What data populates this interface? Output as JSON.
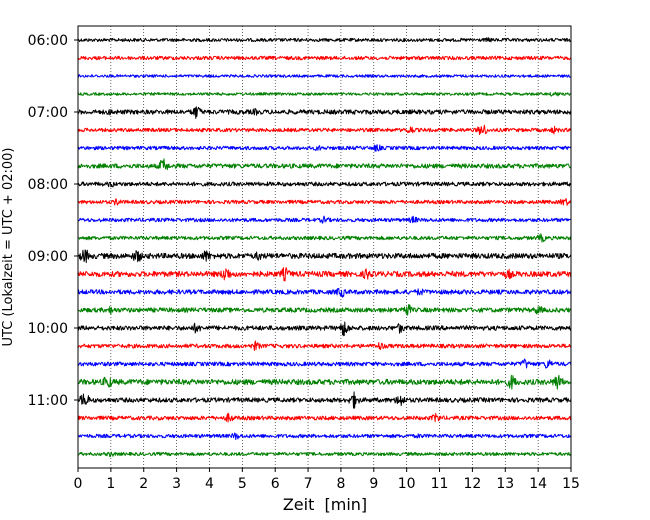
{
  "chart_data": {
    "type": "line",
    "title": "",
    "xlabel": "Zeit  [min]",
    "ylabel": "UTC (Lokalzeit = UTC + 02:00)",
    "xlim": [
      0,
      15
    ],
    "x_ticks": [
      "0",
      "1",
      "2",
      "3",
      "4",
      "5",
      "6",
      "7",
      "8",
      "9",
      "10",
      "11",
      "12",
      "13",
      "14",
      "15"
    ],
    "y_tick_labels": [
      "06:00",
      "07:00",
      "08:00",
      "09:00",
      "10:00",
      "11:00"
    ],
    "grid": "vertical-dotted",
    "row_interval_min": 15,
    "line_colors": [
      "#000000",
      "#ff0000",
      "#0000ff",
      "#008000"
    ],
    "traces": [
      {
        "start": "06:00",
        "color": "#000000",
        "amplitude": 0.18,
        "events": [
          {
            "t": 12.5,
            "amp": 0.3
          }
        ]
      },
      {
        "start": "06:15",
        "color": "#ff0000",
        "amplitude": 0.2,
        "events": []
      },
      {
        "start": "06:30",
        "color": "#0000ff",
        "amplitude": 0.15,
        "events": []
      },
      {
        "start": "06:45",
        "color": "#008000",
        "amplitude": 0.15,
        "events": [
          {
            "t": 14.5,
            "amp": 0.35
          }
        ]
      },
      {
        "start": "07:00",
        "color": "#000000",
        "amplitude": 0.25,
        "events": [
          {
            "t": 1.0,
            "amp": 0.4
          },
          {
            "t": 3.6,
            "amp": 0.8
          },
          {
            "t": 5.4,
            "amp": 0.4
          }
        ]
      },
      {
        "start": "07:15",
        "color": "#ff0000",
        "amplitude": 0.2,
        "events": [
          {
            "t": 10.1,
            "amp": 0.5
          },
          {
            "t": 12.3,
            "amp": 0.75
          },
          {
            "t": 14.5,
            "amp": 0.45
          }
        ]
      },
      {
        "start": "07:30",
        "color": "#0000ff",
        "amplitude": 0.2,
        "events": [
          {
            "t": 7.3,
            "amp": 0.35
          },
          {
            "t": 9.1,
            "amp": 0.45
          }
        ]
      },
      {
        "start": "07:45",
        "color": "#008000",
        "amplitude": 0.25,
        "events": [
          {
            "t": 2.6,
            "amp": 0.85
          },
          {
            "t": 10.7,
            "amp": 0.3
          }
        ]
      },
      {
        "start": "08:00",
        "color": "#000000",
        "amplitude": 0.22,
        "events": [
          {
            "t": 1.0,
            "amp": 0.4
          }
        ]
      },
      {
        "start": "08:15",
        "color": "#ff0000",
        "amplitude": 0.2,
        "events": [
          {
            "t": 1.2,
            "amp": 0.45
          },
          {
            "t": 14.8,
            "amp": 0.5
          }
        ]
      },
      {
        "start": "08:30",
        "color": "#0000ff",
        "amplitude": 0.2,
        "events": [
          {
            "t": 7.5,
            "amp": 0.45
          },
          {
            "t": 10.2,
            "amp": 0.45
          }
        ]
      },
      {
        "start": "08:45",
        "color": "#008000",
        "amplitude": 0.2,
        "events": [
          {
            "t": 14.1,
            "amp": 0.5
          }
        ]
      },
      {
        "start": "09:00",
        "color": "#000000",
        "amplitude": 0.3,
        "events": [
          {
            "t": 0.2,
            "amp": 0.85
          },
          {
            "t": 1.8,
            "amp": 0.8
          },
          {
            "t": 3.9,
            "amp": 0.7
          },
          {
            "t": 5.5,
            "amp": 0.55
          }
        ]
      },
      {
        "start": "09:15",
        "color": "#ff0000",
        "amplitude": 0.3,
        "events": [
          {
            "t": 4.5,
            "amp": 0.9
          },
          {
            "t": 6.3,
            "amp": 0.8
          },
          {
            "t": 8.8,
            "amp": 0.7
          },
          {
            "t": 13.1,
            "amp": 0.6
          }
        ]
      },
      {
        "start": "09:30",
        "color": "#0000ff",
        "amplitude": 0.25,
        "events": [
          {
            "t": 8.0,
            "amp": 0.65
          },
          {
            "t": 10.4,
            "amp": 0.45
          }
        ]
      },
      {
        "start": "09:45",
        "color": "#008000",
        "amplitude": 0.25,
        "events": [
          {
            "t": 1.0,
            "amp": 0.5
          },
          {
            "t": 10.0,
            "amp": 0.8
          },
          {
            "t": 14.0,
            "amp": 0.55
          }
        ]
      },
      {
        "start": "10:00",
        "color": "#000000",
        "amplitude": 0.25,
        "events": [
          {
            "t": 3.6,
            "amp": 0.6
          },
          {
            "t": 8.1,
            "amp": 0.95
          },
          {
            "t": 9.8,
            "amp": 0.6
          }
        ]
      },
      {
        "start": "10:15",
        "color": "#ff0000",
        "amplitude": 0.22,
        "events": [
          {
            "t": 5.4,
            "amp": 0.55
          },
          {
            "t": 9.2,
            "amp": 0.5
          }
        ]
      },
      {
        "start": "10:30",
        "color": "#0000ff",
        "amplitude": 0.22,
        "events": [
          {
            "t": 13.6,
            "amp": 0.6
          },
          {
            "t": 14.3,
            "amp": 0.6
          }
        ]
      },
      {
        "start": "10:45",
        "color": "#008000",
        "amplitude": 0.3,
        "events": [
          {
            "t": 0.9,
            "amp": 0.8
          },
          {
            "t": 13.2,
            "amp": 0.85
          },
          {
            "t": 14.6,
            "amp": 0.95
          }
        ]
      },
      {
        "start": "11:00",
        "color": "#000000",
        "amplitude": 0.25,
        "events": [
          {
            "t": 0.2,
            "amp": 0.85
          },
          {
            "t": 8.4,
            "amp": 0.95
          },
          {
            "t": 9.8,
            "amp": 0.8
          }
        ]
      },
      {
        "start": "11:15",
        "color": "#ff0000",
        "amplitude": 0.22,
        "events": [
          {
            "t": 4.6,
            "amp": 0.55
          },
          {
            "t": 10.9,
            "amp": 0.55
          }
        ]
      },
      {
        "start": "11:30",
        "color": "#0000ff",
        "amplitude": 0.2,
        "events": [
          {
            "t": 4.8,
            "amp": 0.45
          },
          {
            "t": 10.4,
            "amp": 0.3
          }
        ]
      },
      {
        "start": "11:45",
        "color": "#008000",
        "amplitude": 0.18,
        "events": [
          {
            "t": 1.0,
            "amp": 0.35
          }
        ]
      }
    ]
  }
}
